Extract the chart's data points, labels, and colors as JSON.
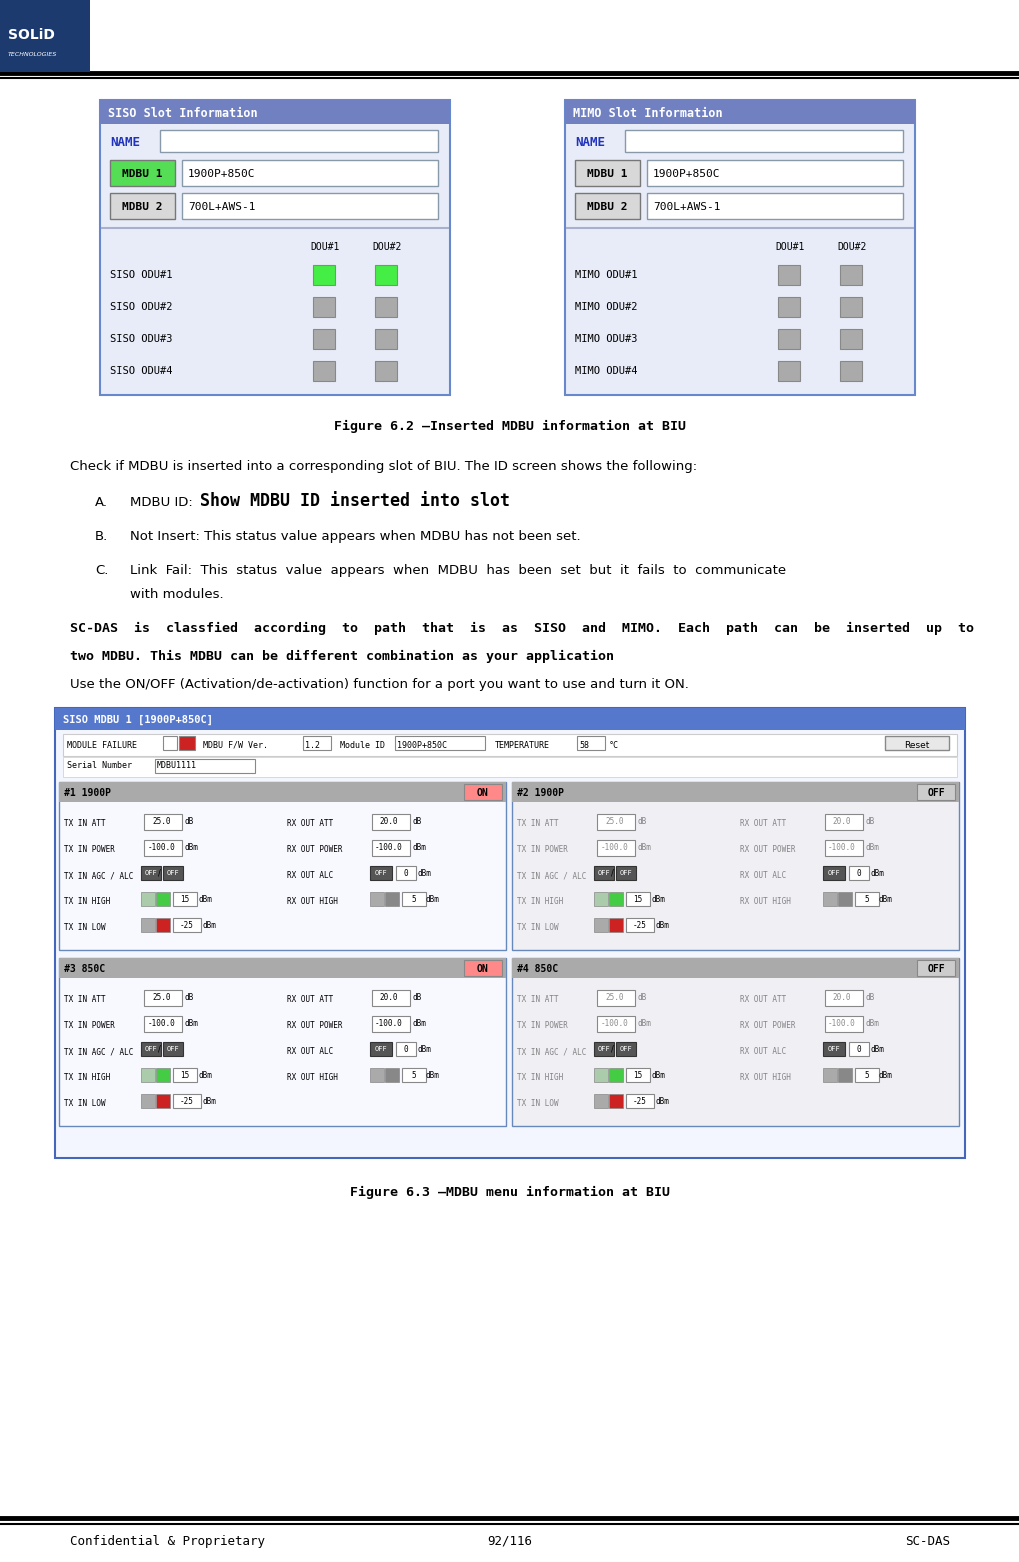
{
  "page_width": 10.2,
  "page_height": 15.62,
  "bg_color": "#ffffff",
  "footer_text_left": "Confidential & Proprietary",
  "footer_text_center": "92/116",
  "footer_text_right": "SC-DAS",
  "figure_caption1": "Figure 6.2 –Inserted MDBU information at BIU",
  "figure_caption2": "Figure 6.3 –MDBU menu information at BIU",
  "siso_title": "SISO Slot Information",
  "mimo_title": "MIMO Slot Information",
  "slot_title_bg": "#7080c0",
  "slot_panel_bg": "#e8ecf8",
  "mdbu1_color_siso": "#55dd55",
  "mdbu_btn_bg": "#d8d8d8",
  "panel_border": "#6888cc",
  "fig3_title_bg": "#5577cc",
  "fig3_bg": "#f4f6ff",
  "sub_label_bg_on": "#ffaaaa",
  "sub_label_bg_off": "#cccccc",
  "sub_bg_active": "#ffffff",
  "sub_bg_inactive": "#f0f0f0",
  "on_btn_bg": "#ff8888",
  "off_btn_bg": "#dddddd"
}
